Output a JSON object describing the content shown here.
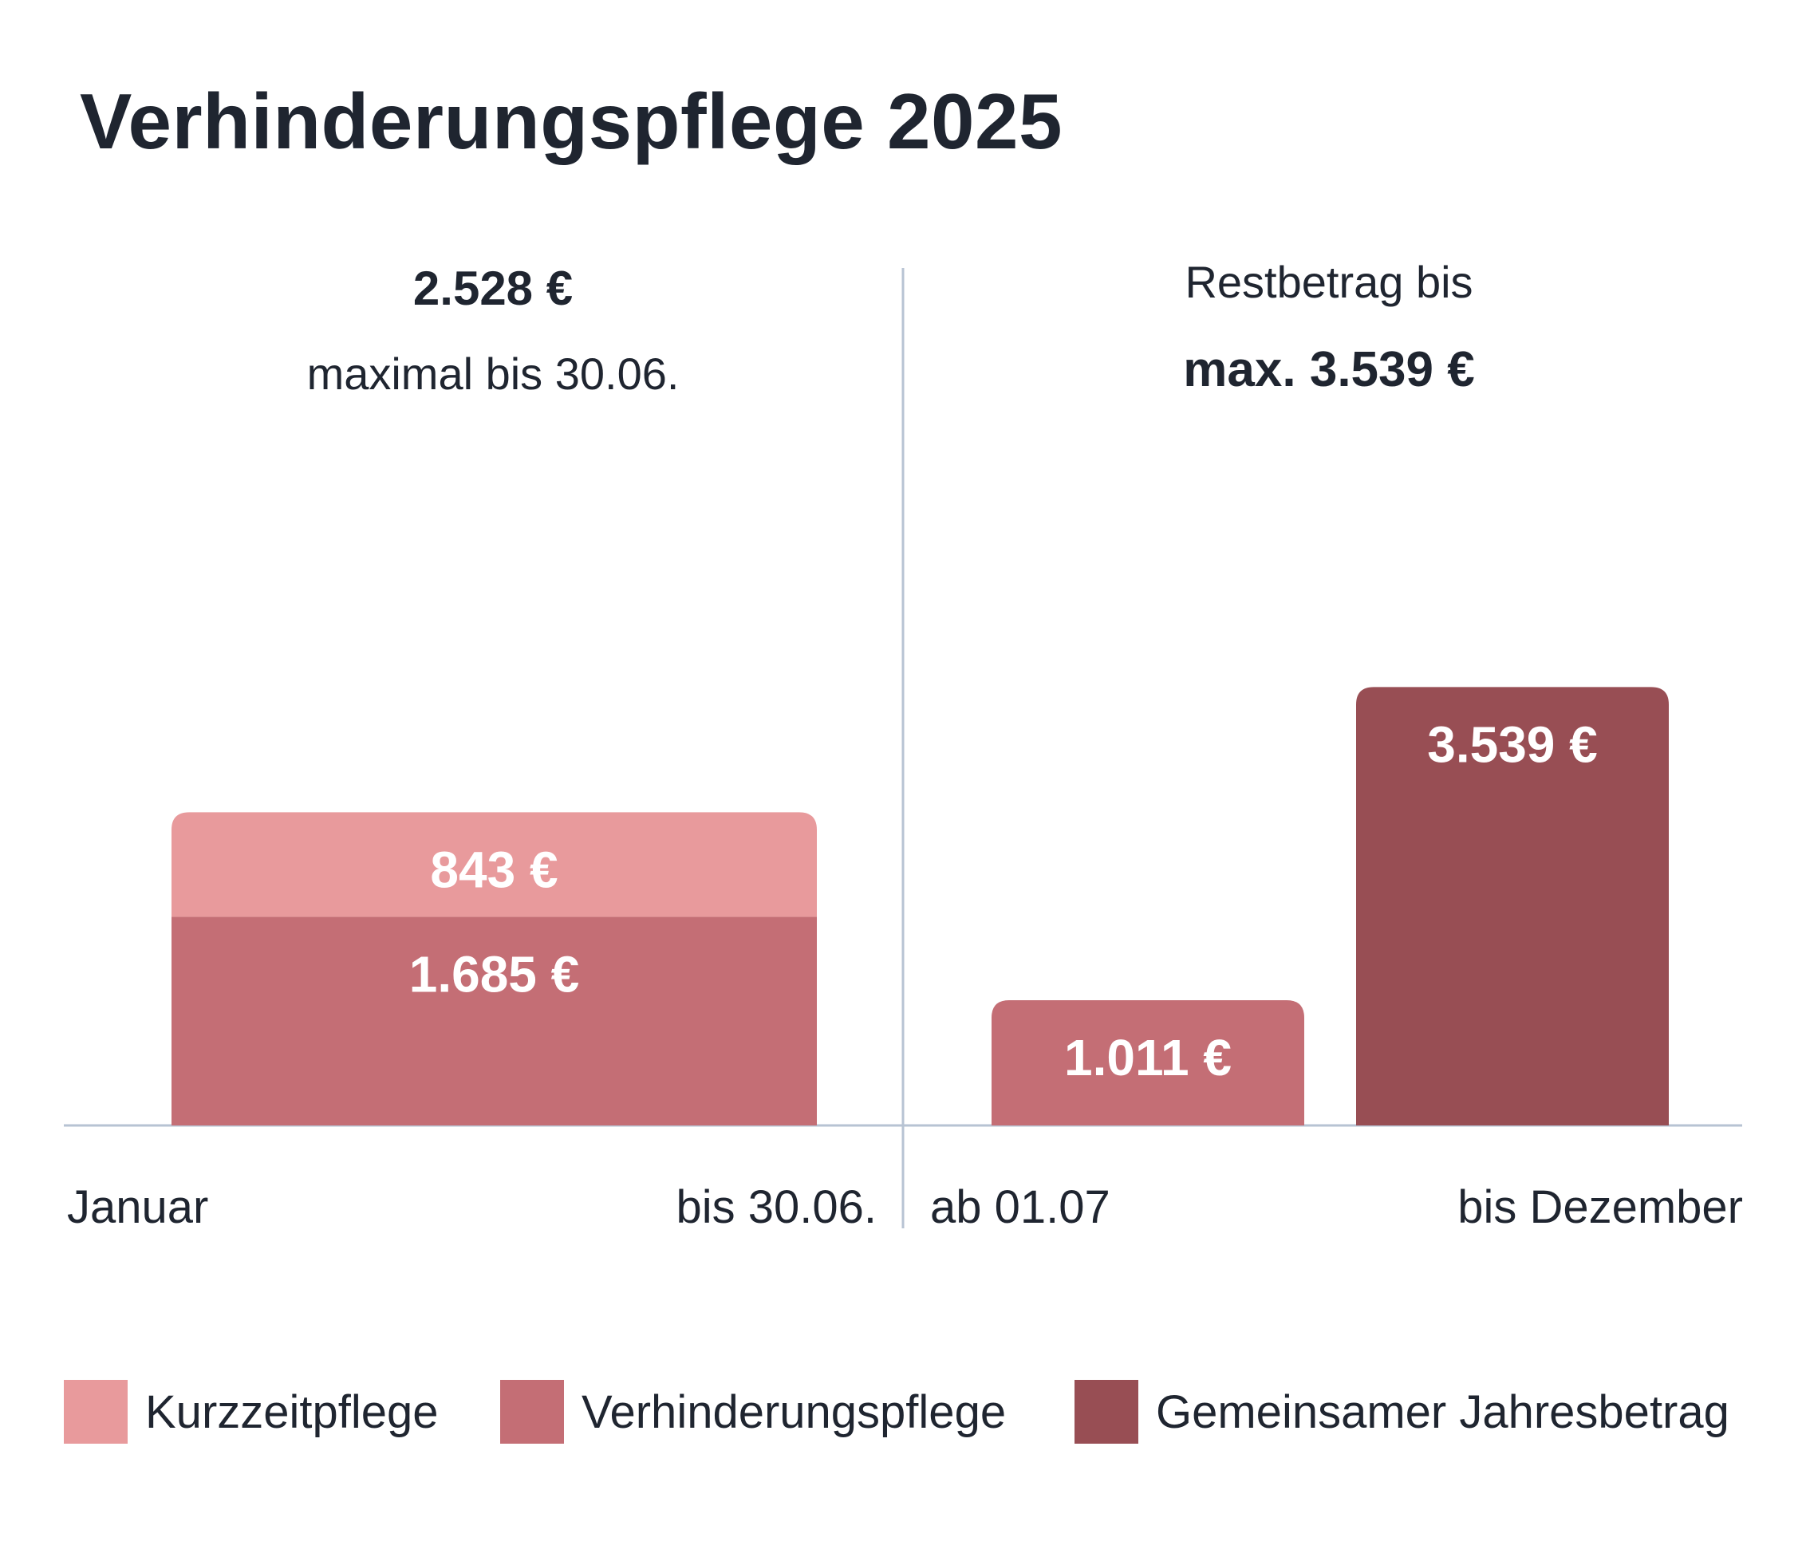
{
  "title": "Verhinderungspflege 2025",
  "colors": {
    "kurzzeitpflege": "#e89a9c",
    "verhinderungspflege": "#c46e75",
    "jahresbetrag": "#984e54",
    "axis": "#b7c3d3",
    "text": "#1f2530",
    "bar_label": "#ffffff"
  },
  "left_header": {
    "amount": "2.528 €",
    "note": "maximal bis 30.06."
  },
  "right_header": {
    "note": "Restbetrag bis",
    "amount": "max. 3.539 €"
  },
  "x_labels": [
    "Januar",
    "bis 30.06.",
    "ab 01.07",
    "bis Dezember"
  ],
  "legend": [
    {
      "label": "Kurzzeitpflege",
      "color": "#e89a9c"
    },
    {
      "label": "Verhinderungspflege",
      "color": "#c46e75"
    },
    {
      "label": "Gemeinsamer Jahresbetrag",
      "color": "#984e54"
    }
  ],
  "chart_data": {
    "type": "bar",
    "title": "Verhinderungspflege 2025",
    "categories": [
      "Januar – bis 30.06.",
      "ab 01.07",
      "bis Dezember"
    ],
    "series": [
      {
        "name": "Kurzzeitpflege",
        "values": [
          843,
          null,
          null
        ],
        "labels": [
          "843 €",
          "",
          ""
        ]
      },
      {
        "name": "Verhinderungspflege",
        "values": [
          1685,
          1011,
          null
        ],
        "labels": [
          "1.685 €",
          "1.011 €",
          ""
        ]
      },
      {
        "name": "Gemeinsamer Jahresbetrag",
        "values": [
          null,
          null,
          3539
        ],
        "labels": [
          "",
          "",
          "3.539 €"
        ]
      }
    ],
    "stacked": true,
    "ylim": [
      0,
      4000
    ],
    "grid": false,
    "legend_position": "bottom"
  }
}
